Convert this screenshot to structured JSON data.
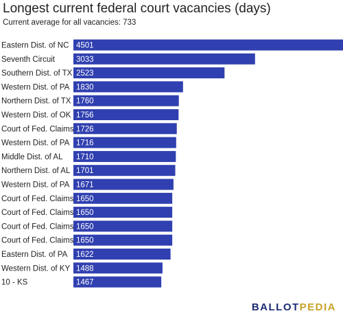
{
  "title": "Longest current federal court vacancies (days)",
  "subtitle": "Current average for all vacancies: 733",
  "brand": {
    "part1": "BALLOT",
    "part2": "PEDIA",
    "color1": "#1b2a74",
    "color2": "#c8a228"
  },
  "bar_color": "#3040b0",
  "chart_data": {
    "type": "bar",
    "orientation": "horizontal",
    "title": "Longest current federal court vacancies (days)",
    "subtitle": "Current average for all vacancies: 733",
    "xlim": [
      0,
      4501
    ],
    "categories": [
      "Eastern Dist. of NC",
      "Seventh Circuit",
      "Southern Dist. of TX",
      "Western Dist. of PA",
      "Northern Dist. of TX",
      "Western Dist. of OK",
      "Court of Fed. Claims",
      "Western Dist. of PA",
      "Middle Dist. of AL",
      "Northern Dist. of AL",
      "Western Dist. of PA",
      "Court of Fed. Claims",
      "Court of Fed. Claims",
      "Court of Fed. Claims",
      "Court of Fed. Claims",
      "Eastern Dist. of PA",
      "Western Dist. of KY",
      "10 - KS"
    ],
    "values": [
      4501,
      3033,
      2523,
      1830,
      1760,
      1756,
      1726,
      1716,
      1710,
      1701,
      1671,
      1650,
      1650,
      1650,
      1650,
      1622,
      1488,
      1467
    ],
    "grid": false,
    "data_labels": true
  }
}
